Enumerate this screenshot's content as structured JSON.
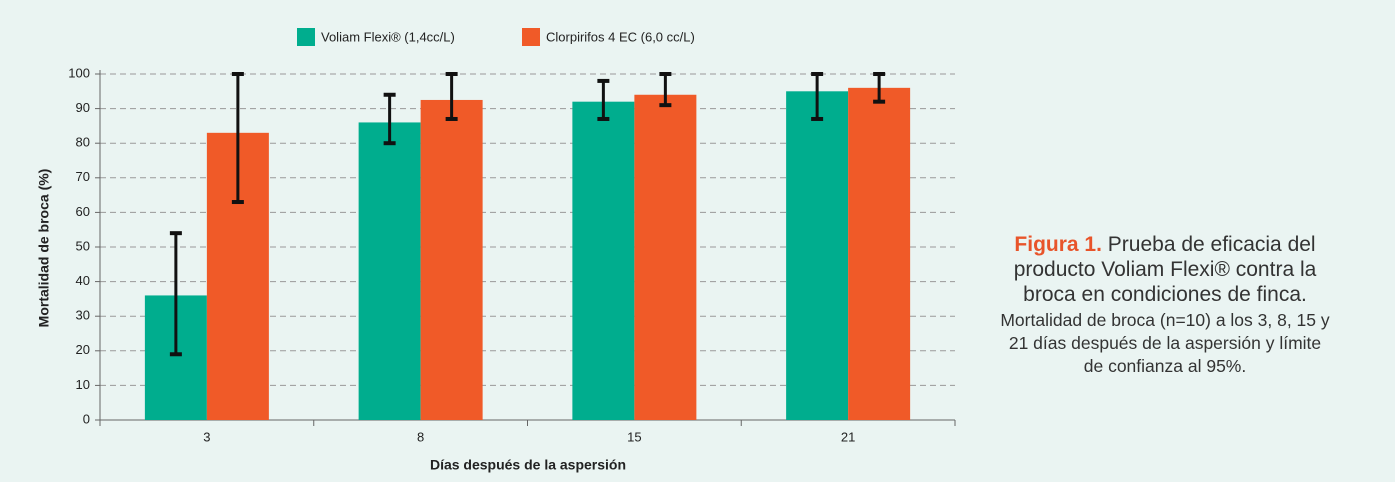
{
  "chart_data": {
    "type": "bar",
    "ylabel": "Mortalidad de broca (%)",
    "xlabel": "Días después de la aspersión",
    "categories": [
      "3",
      "8",
      "15",
      "21"
    ],
    "series": [
      {
        "name": "Voliam Flexi® (1,4cc/L)",
        "color": "#00ad8e",
        "values": [
          36,
          86,
          92,
          95
        ],
        "ci_low": [
          19,
          80,
          87,
          87
        ],
        "ci_high": [
          54,
          94,
          98,
          100
        ]
      },
      {
        "name": "Clorpirifos 4 EC (6,0 cc/L)",
        "color": "#f05a28",
        "values": [
          83,
          92.5,
          94,
          96
        ],
        "ci_low": [
          63,
          87,
          91,
          92
        ],
        "ci_high": [
          100,
          100,
          100,
          100
        ]
      }
    ],
    "ylim": [
      0,
      100
    ],
    "yticks": [
      0,
      10,
      20,
      30,
      40,
      50,
      60,
      70,
      80,
      90,
      100
    ],
    "grid": true,
    "legend": "top"
  },
  "caption": {
    "label": "Figura 1.",
    "title": "Prueba de eficacia del producto Voliam Flexi® contra la broca en condiciones de finca.",
    "body": "Mortalidad de broca (n=10) a los 3, 8, 15 y 21 días después de la aspersión y límite de confianza al 95%."
  }
}
